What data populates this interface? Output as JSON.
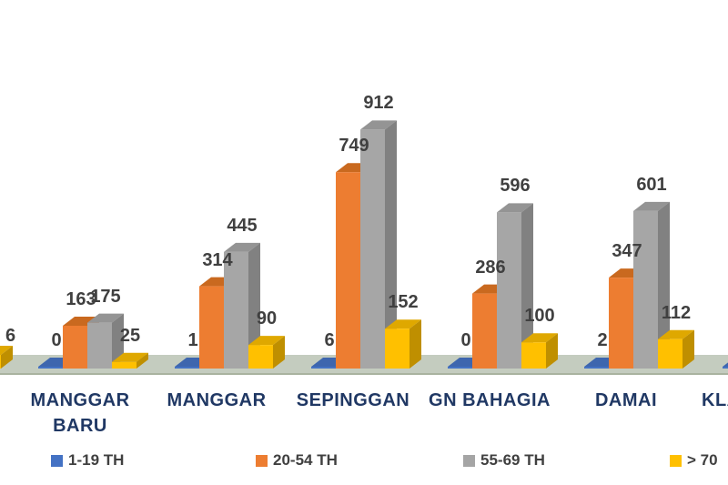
{
  "chart_data": {
    "type": "bar",
    "style": "3d-clustered",
    "title": "",
    "xlabel": "",
    "ylabel": "",
    "gridlines": false,
    "value_axis_visible": false,
    "categories": [
      {
        "lines": [
          "MANGGAR",
          "BARU"
        ]
      },
      {
        "lines": [
          "MANGGAR"
        ]
      },
      {
        "lines": [
          "SEPINGGAN"
        ]
      },
      {
        "lines": [
          "GN BAHAGIA"
        ]
      },
      {
        "lines": [
          "DAMAI"
        ]
      }
    ],
    "series": [
      {
        "name": "1-19 TH",
        "values": [
          0,
          1,
          6,
          0,
          2
        ],
        "faces": {
          "front": "#4472C4",
          "top": "#3E66AE",
          "side": "#2E5190"
        }
      },
      {
        "name": "20-54 TH",
        "values": [
          163,
          314,
          749,
          286,
          347
        ],
        "faces": {
          "front": "#ED7D31",
          "top": "#C9691F",
          "side": "#B35C1B"
        }
      },
      {
        "name": "55-69 TH",
        "values": [
          175,
          445,
          912,
          596,
          601
        ],
        "faces": {
          "front": "#A6A6A6",
          "top": "#949494",
          "side": "#818181"
        }
      },
      {
        "name": "> 70",
        "values": [
          25,
          90,
          152,
          100,
          112
        ],
        "faces": {
          "front": "#FFC000",
          "top": "#DFA800",
          "side": "#BF8F00"
        }
      }
    ],
    "partial_left_bar": {
      "series": "> 70",
      "visible_label": "6"
    },
    "partial_right_bar": {
      "series": "1-19 TH",
      "visible_category": "KLA"
    },
    "floor": {
      "color": "#C4CCBF",
      "edge_color": "#A9B39F"
    },
    "colors": {
      "value_label": "#404040",
      "category_label": "#203864",
      "legend_text": "#404040"
    },
    "legend": {
      "position": "bottom",
      "items": [
        {
          "label": "1-19 TH",
          "color": "#4472C4"
        },
        {
          "label": "20-54 TH",
          "color": "#ED7D31"
        },
        {
          "label": "55-69 TH",
          "color": "#A5A5A5"
        },
        {
          "label": "> 70",
          "color": "#FFC000"
        }
      ]
    }
  }
}
